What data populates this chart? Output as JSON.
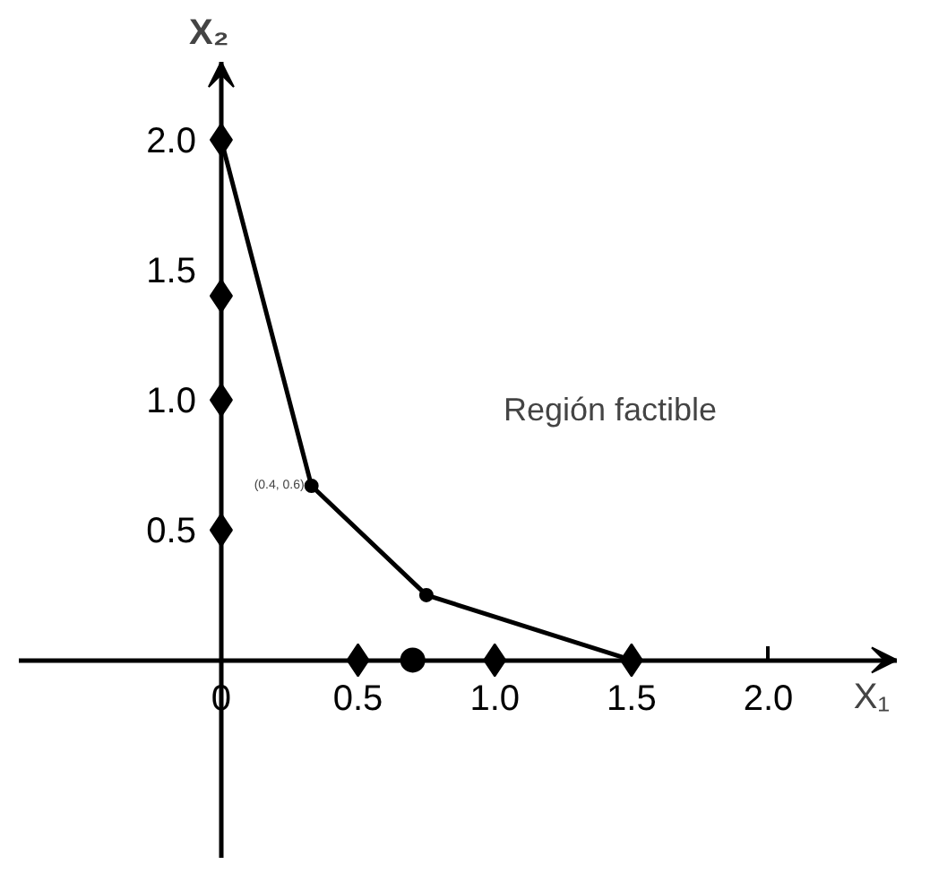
{
  "chart_data": {
    "type": "line",
    "xlabel": "X₁",
    "ylabel": "X₂",
    "series": [
      {
        "color": "#000000",
        "x": [
          0,
          0.33,
          0.75,
          1.5
        ],
        "values": [
          2.0,
          0.67,
          0.25,
          0
        ],
        "marker": "circle"
      },
      {
        "type": "scatter",
        "color": "#000000",
        "x": [
          0,
          0,
          0,
          0,
          0.5,
          1.0,
          1.5
        ],
        "values": [
          2.0,
          1.4,
          1.0,
          0.5,
          0,
          0,
          0
        ],
        "marker": "diamond"
      },
      {
        "type": "scatter",
        "color": "#000000",
        "x": [
          0.7
        ],
        "values": [
          0
        ],
        "marker": "circle"
      }
    ],
    "annotations": [
      "Región factible",
      {
        "text": "(0.4, 0.6)",
        "x": 0.33,
        "y": 0.67
      }
    ],
    "xlim": [
      -0.74,
      2.47
    ],
    "ylim": [
      -0.76,
      2.3
    ],
    "xticks": [
      {
        "value": 0,
        "label": "0"
      },
      {
        "value": 0.5,
        "label": "0.5"
      },
      {
        "value": 1,
        "label": "1.0"
      },
      {
        "value": 1.5,
        "label": "1.5"
      },
      {
        "value": 2,
        "label": "2.0"
      }
    ],
    "yticks": [
      {
        "value": 0.5,
        "label": "0.5"
      },
      {
        "value": 1,
        "label": "1.0"
      },
      {
        "value": 1.5,
        "label": "1.5"
      },
      {
        "value": 2,
        "label": "2.0"
      }
    ],
    "grid": false
  }
}
